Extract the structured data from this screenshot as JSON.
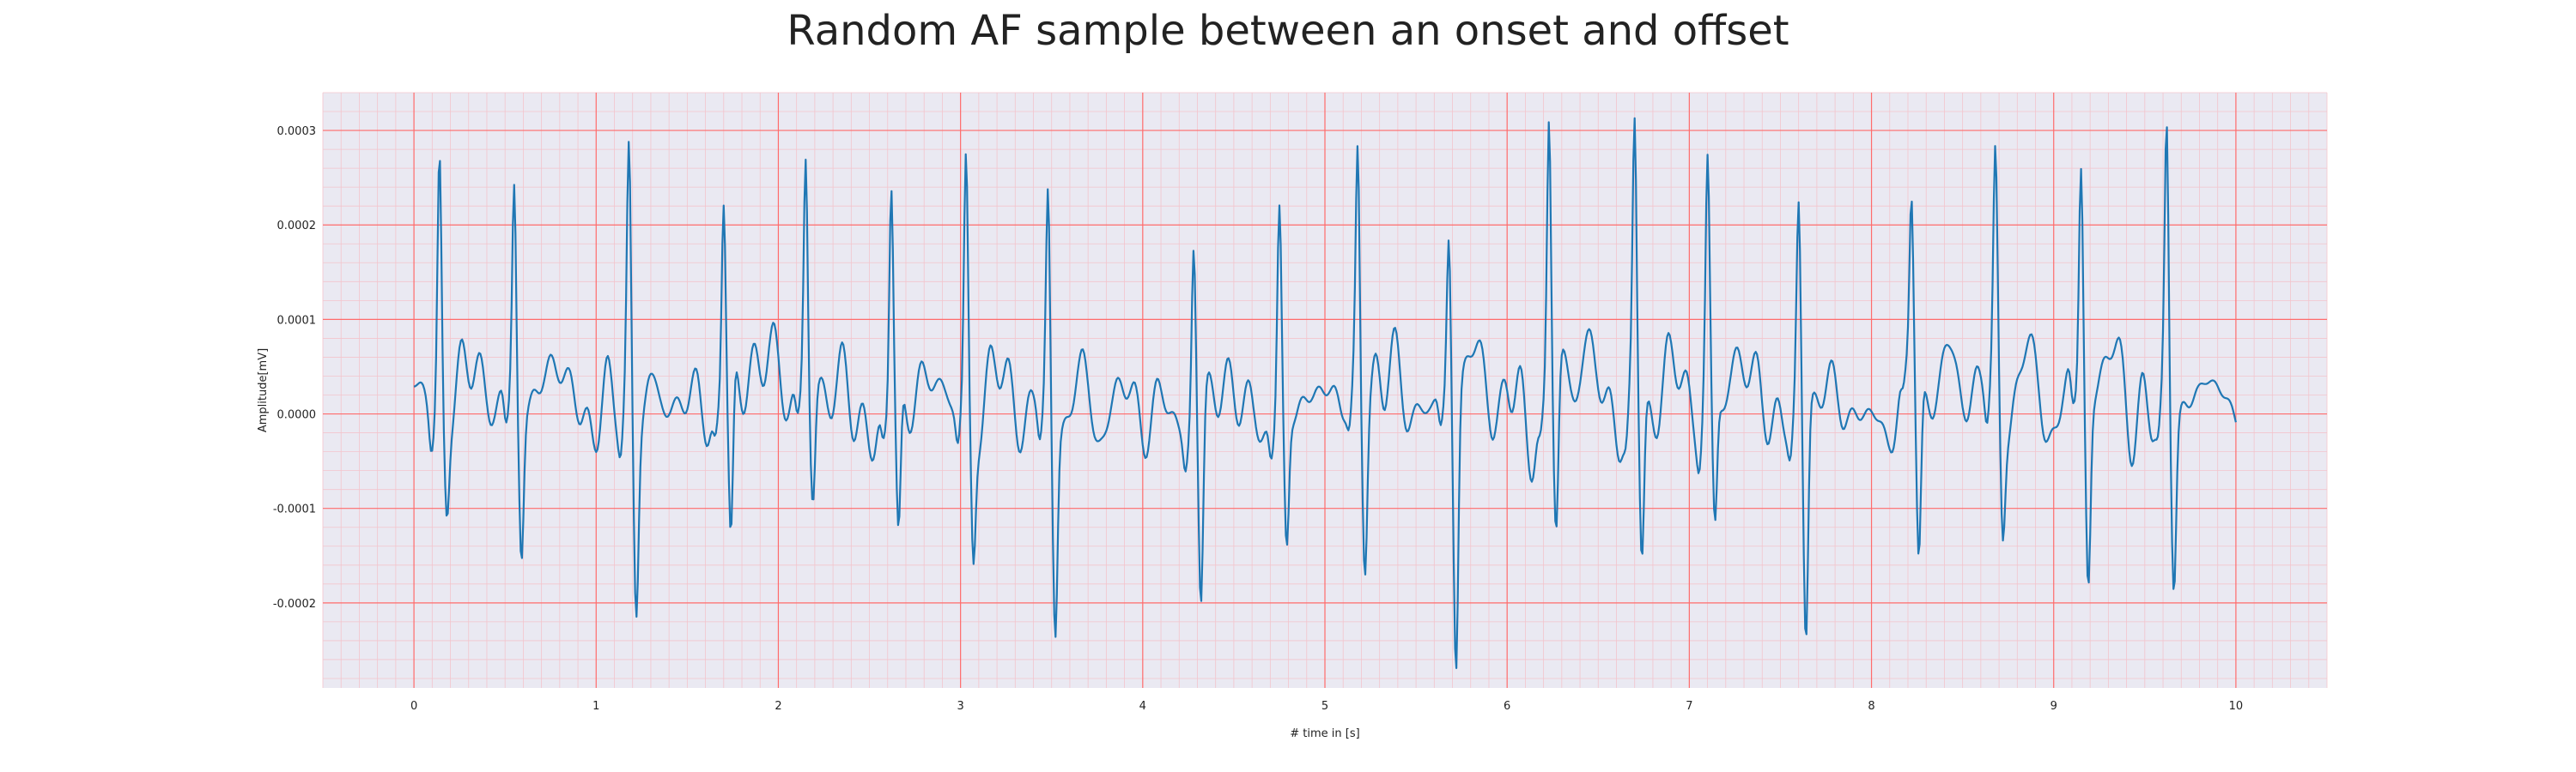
{
  "chart_data": {
    "type": "line",
    "title": "Random AF sample between an onset and offset",
    "xlabel": "# time in [s]",
    "ylabel": "Amplitude[mV]",
    "xlim": [
      -0.5,
      10.5
    ],
    "ylim": [
      -0.00029,
      0.00034
    ],
    "x_ticks": [
      "0",
      "1",
      "2",
      "3",
      "4",
      "5",
      "6",
      "7",
      "8",
      "9",
      "10"
    ],
    "y_ticks": [
      "-0.0002",
      "-0.0001",
      "0.0000",
      "0.0001",
      "0.0002",
      "0.0003"
    ],
    "grid": true,
    "colors": {
      "background": "#eae9f2",
      "major_grid": "#ff6b6b",
      "minor_grid": "#f3c4cc",
      "line": "#1f77b4"
    },
    "r_peaks": [
      {
        "t": 0.14,
        "amp": 0.00027,
        "s": -9e-05
      },
      {
        "t": 0.55,
        "amp": 0.000235,
        "s": -0.000145
      },
      {
        "t": 1.18,
        "amp": 0.00027,
        "s": -0.00018
      },
      {
        "t": 1.7,
        "amp": 0.00022,
        "s": -0.000175
      },
      {
        "t": 2.15,
        "amp": 0.00026,
        "s": -0.000105
      },
      {
        "t": 2.62,
        "amp": 0.00025,
        "s": -0.000155
      },
      {
        "t": 3.03,
        "amp": 0.00026,
        "s": -0.000135
      },
      {
        "t": 3.48,
        "amp": 0.00024,
        "s": -0.0002
      },
      {
        "t": 4.28,
        "amp": 0.00019,
        "s": -0.0002
      },
      {
        "t": 4.75,
        "amp": 0.00022,
        "s": -0.00014
      },
      {
        "t": 5.18,
        "amp": 0.00026,
        "s": -0.000145
      },
      {
        "t": 5.68,
        "amp": 0.00019,
        "s": -0.000265
      },
      {
        "t": 6.23,
        "amp": 0.00031,
        "s": -0.000155
      },
      {
        "t": 6.7,
        "amp": 0.00028,
        "s": -0.000155
      },
      {
        "t": 7.1,
        "amp": 0.00024,
        "s": -0.00014
      },
      {
        "t": 7.6,
        "amp": 0.000215,
        "s": -0.000235
      },
      {
        "t": 8.22,
        "amp": 0.0002,
        "s": -0.000175
      },
      {
        "t": 8.68,
        "amp": 0.000225,
        "s": -0.00012
      },
      {
        "t": 9.15,
        "amp": 0.000255,
        "s": -0.000185
      },
      {
        "t": 9.62,
        "amp": 0.0003,
        "s": -0.00016
      }
    ],
    "series": [
      {
        "x_range": [
          0,
          10
        ],
        "samples": 1400
      }
    ]
  }
}
